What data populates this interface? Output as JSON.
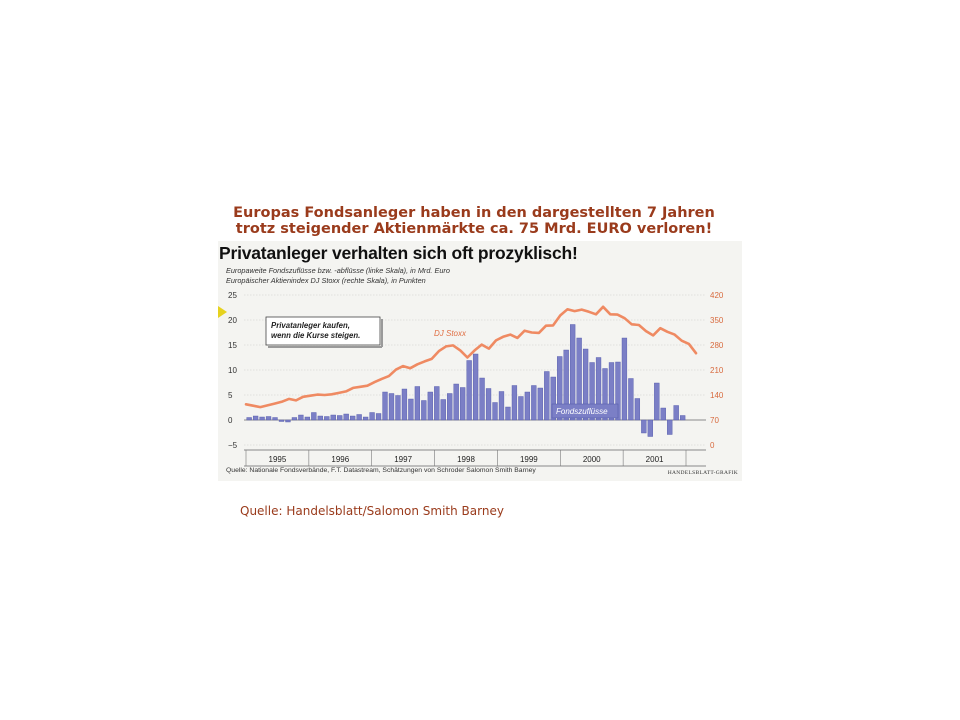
{
  "header": {
    "line1": "Europas Fondsanleger haben in den dargestellten 7 Jahren",
    "line2": "trotz steigender Aktienmärkte ca. 75 Mrd. EURO verloren!"
  },
  "caption": "Quelle: Handelsblatt/Salomon Smith Barney",
  "chart_data": {
    "type": "bar",
    "title": "Privatanleger verhalten sich oft prozyklisch!",
    "subtitle_lines": [
      "Europaweite Fondszuflüsse bzw. -abflüsse (linke Skala), in Mrd. Euro",
      "Europäischer Aktienindex DJ Stoxx (rechte Skala), in Punkten"
    ],
    "source": "Quelle: Nationale Fondsverbände, F.T. Datastream, Schätzungen von Schroder Salomon Smith Barney",
    "credit": "HANDELSBLATT-GRAFIK",
    "annotation": [
      "Privatanleger kaufen,",
      "wenn die Kurse steigen."
    ],
    "colors": {
      "bars": "#7b7fc6",
      "bar_edge": "#4f55a8",
      "line": "#ef8a62",
      "ticks_right": "#d86a3e"
    },
    "grid": true,
    "years": [
      "1995",
      "1996",
      "1997",
      "1998",
      "1999",
      "2000",
      "2001"
    ],
    "y_left": {
      "ylim": [
        -5,
        25
      ],
      "ticks": [
        "25",
        "20",
        "15",
        "10",
        "5",
        "0",
        "−5"
      ]
    },
    "y_right": {
      "ylim": [
        0,
        420
      ],
      "ticks": [
        "420",
        "350",
        "280",
        "210",
        "140",
        "70",
        "0"
      ]
    },
    "series": [
      {
        "name": "Fondszuflüsse",
        "axis": "left",
        "values": [
          0.5,
          0.8,
          0.6,
          0.7,
          0.5,
          -0.3,
          -0.4,
          0.5,
          1.0,
          0.6,
          1.5,
          0.8,
          0.7,
          1.0,
          0.9,
          1.2,
          0.8,
          1.1,
          0.6,
          1.5,
          1.3,
          5.6,
          5.3,
          4.9,
          6.2,
          4.2,
          6.7,
          3.9,
          5.6,
          6.7,
          4.1,
          5.3,
          7.2,
          6.5,
          11.9,
          13.2,
          8.4,
          6.3,
          3.5,
          5.7,
          2.6,
          6.9,
          4.7,
          5.6,
          6.9,
          6.4,
          9.7,
          8.6,
          12.7,
          14.0,
          19.1,
          16.4,
          14.2,
          11.5,
          12.5,
          10.3,
          11.5,
          11.6,
          16.4,
          8.3,
          4.3,
          -2.6,
          -3.3,
          7.4,
          2.4,
          -2.9,
          2.9,
          0.9
        ]
      },
      {
        "name": "DJ Stoxx",
        "axis": "right",
        "values": [
          114,
          110,
          106,
          111,
          116,
          121,
          129,
          125,
          135,
          138,
          141,
          140,
          142,
          146,
          150,
          160,
          163,
          166,
          176,
          185,
          193,
          211,
          221,
          215,
          226,
          234,
          241,
          263,
          276,
          279,
          265,
          245,
          265,
          281,
          270,
          293,
          303,
          309,
          300,
          320,
          315,
          314,
          334,
          335,
          363,
          380,
          375,
          379,
          373,
          366,
          387,
          366,
          365,
          355,
          338,
          336,
          319,
          307,
          327,
          317,
          309,
          292,
          283,
          257
        ]
      }
    ]
  }
}
